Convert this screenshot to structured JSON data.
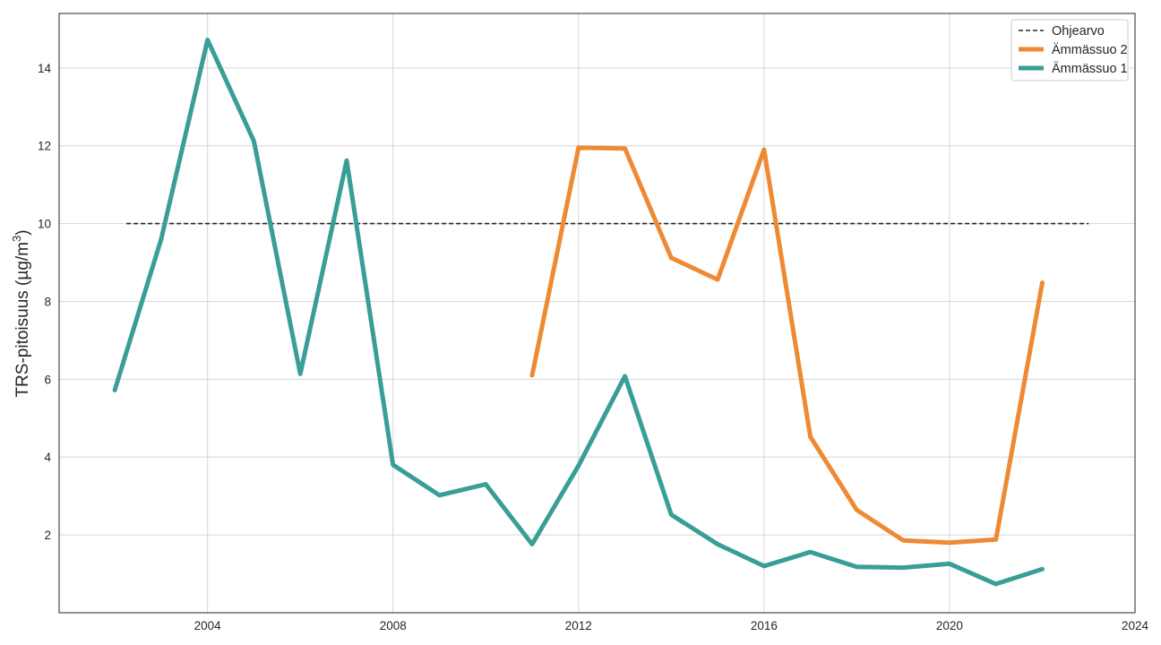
{
  "chart_data": {
    "type": "line",
    "xlabel": "",
    "ylabel": {
      "prefix": "TRS-pitoisuus (µg/m",
      "superscript": "3",
      "suffix": ")"
    },
    "xlim": [
      2000.8,
      2024.0
    ],
    "ylim": [
      0,
      15.4
    ],
    "xticks": [
      2004,
      2008,
      2012,
      2016,
      2020,
      2024
    ],
    "yticks": [
      2,
      4,
      6,
      8,
      10,
      12,
      14
    ],
    "grid": true,
    "legend_position": "top-right",
    "series": [
      {
        "name": "Ohjearvo",
        "color": "#262626",
        "style": "dashed",
        "x": [
          2002.25,
          2023.0
        ],
        "y": [
          10.0,
          10.0
        ]
      },
      {
        "name": "Ämmässuo 2",
        "color": "#ee8a34",
        "style": "solid",
        "x": [
          2011,
          2012,
          2013,
          2014,
          2015,
          2016,
          2017,
          2018,
          2019,
          2020,
          2021,
          2022
        ],
        "y": [
          6.1,
          11.95,
          11.93,
          9.12,
          8.56,
          11.9,
          4.52,
          2.64,
          1.86,
          1.8,
          1.88,
          8.48
        ]
      },
      {
        "name": "Ämmässuo 1",
        "color": "#389e96",
        "style": "solid",
        "x": [
          2002,
          2003,
          2004,
          2005,
          2006,
          2007,
          2008,
          2009,
          2010,
          2011,
          2012,
          2013,
          2014,
          2015,
          2016,
          2017,
          2018,
          2019,
          2020,
          2021,
          2022
        ],
        "y": [
          5.72,
          9.6,
          14.72,
          12.12,
          6.14,
          11.62,
          3.8,
          3.02,
          3.3,
          1.76,
          3.78,
          6.08,
          2.52,
          1.76,
          1.2,
          1.56,
          1.18,
          1.16,
          1.26,
          0.74,
          1.12
        ]
      }
    ]
  }
}
